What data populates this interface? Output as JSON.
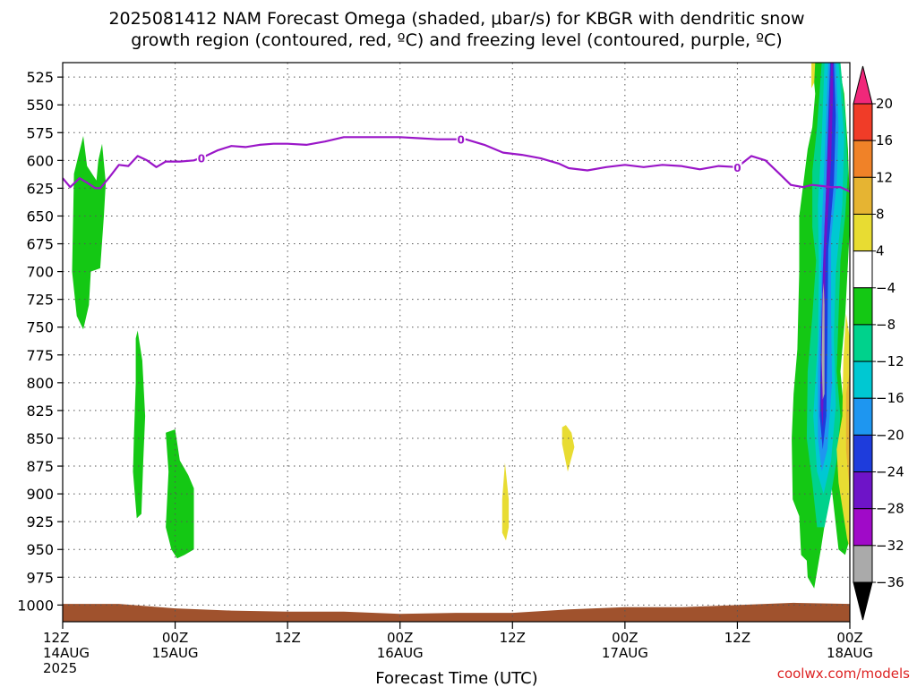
{
  "chart_data": {
    "type": "heatmap",
    "title": "2025081412 NAM Forecast Omega (shaded, μbar/s) for KBGR with dendritic snow growth region (contoured, red, ºC) and freezing level (contoured, purple, ºC)",
    "title_lines": [
      "2025081412 NAM Forecast Omega (shaded, μbar/s) for KBGR with dendritic snow",
      "growth region (contoured, red, ºC) and freezing level (contoured, purple, ºC)"
    ],
    "xlabel": "Forecast Time (UTC)",
    "credit": "coolwx.com/models",
    "y_axis": {
      "unit": "hPa",
      "reversed": true,
      "range": [
        1015,
        512
      ],
      "ticks": [
        525,
        550,
        575,
        600,
        625,
        650,
        675,
        700,
        725,
        750,
        775,
        800,
        825,
        850,
        875,
        900,
        925,
        950,
        975,
        1000
      ]
    },
    "x_axis": {
      "unit": "forecast hour",
      "range": [
        0,
        84
      ],
      "ticks": [
        {
          "hour": 0,
          "lines": [
            "12Z",
            "14AUG",
            "2025"
          ]
        },
        {
          "hour": 12,
          "lines": [
            "00Z",
            "15AUG"
          ]
        },
        {
          "hour": 24,
          "lines": [
            "12Z"
          ]
        },
        {
          "hour": 36,
          "lines": [
            "00Z",
            "16AUG"
          ]
        },
        {
          "hour": 48,
          "lines": [
            "12Z"
          ]
        },
        {
          "hour": 60,
          "lines": [
            "00Z",
            "17AUG"
          ]
        },
        {
          "hour": 72,
          "lines": [
            "12Z"
          ]
        },
        {
          "hour": 84,
          "lines": [
            "00Z",
            "18AUG"
          ]
        }
      ]
    },
    "grid": true,
    "colorbar": {
      "labels": [
        20,
        16,
        12,
        8,
        4,
        -4,
        -8,
        -12,
        -16,
        -20,
        -24,
        -28,
        -32,
        -36
      ],
      "colors": [
        "#f0287a",
        "#f03c28",
        "#f08228",
        "#e6b432",
        "#e8dc32",
        "#ffffff",
        "#14c814",
        "#00d28c",
        "#00c8d2",
        "#1e96f0",
        "#1e3cdc",
        "#6e14c8",
        "#a00ac8",
        "#aaaaaa",
        "#000000"
      ],
      "placement": "right"
    },
    "freezing_level": {
      "color": "#9a16c8",
      "label": "0",
      "points": [
        [
          0,
          616
        ],
        [
          0.8,
          624
        ],
        [
          1.8,
          616
        ],
        [
          2.6,
          620
        ],
        [
          3.5,
          625
        ],
        [
          4,
          625
        ],
        [
          5,
          615
        ],
        [
          6,
          604
        ],
        [
          7,
          605
        ],
        [
          8,
          596
        ],
        [
          9,
          600
        ],
        [
          10,
          606
        ],
        [
          11,
          601
        ],
        [
          12.5,
          601
        ],
        [
          14,
          600
        ],
        [
          15,
          597
        ],
        [
          16.5,
          591
        ],
        [
          18,
          587
        ],
        [
          19.5,
          588
        ],
        [
          21,
          586
        ],
        [
          22.5,
          585
        ],
        [
          24,
          585
        ],
        [
          26,
          586
        ],
        [
          28,
          583
        ],
        [
          30,
          579
        ],
        [
          33,
          579
        ],
        [
          36,
          579
        ],
        [
          38,
          580
        ],
        [
          40,
          581
        ],
        [
          43,
          581
        ],
        [
          45,
          586
        ],
        [
          47,
          593
        ],
        [
          49,
          595
        ],
        [
          51,
          598
        ],
        [
          53,
          603
        ],
        [
          54,
          607
        ],
        [
          56,
          609
        ],
        [
          58,
          606
        ],
        [
          60,
          604
        ],
        [
          62,
          606
        ],
        [
          64,
          604
        ],
        [
          66,
          605
        ],
        [
          68,
          608
        ],
        [
          70,
          605
        ],
        [
          72,
          606
        ],
        [
          73.5,
          596
        ],
        [
          75,
          600
        ],
        [
          76.5,
          612
        ],
        [
          77.7,
          622
        ],
        [
          79,
          624
        ],
        [
          80,
          622
        ],
        [
          81,
          623
        ],
        [
          82,
          624
        ],
        [
          83,
          624
        ],
        [
          84,
          628
        ]
      ],
      "label_hours": [
        14.8,
        42.5,
        72.0
      ]
    },
    "omega_regions": [
      {
        "level": -4,
        "color": "#14c814",
        "points": [
          [
            1.2,
            612
          ],
          [
            2.2,
            578
          ],
          [
            2.6,
            605
          ],
          [
            3.6,
            618
          ],
          [
            3.8,
            600
          ],
          [
            4.2,
            585
          ],
          [
            4.6,
            620
          ],
          [
            4.4,
            650
          ],
          [
            4.0,
            697
          ],
          [
            3.0,
            700
          ],
          [
            2.8,
            730
          ],
          [
            2.2,
            752
          ],
          [
            1.5,
            740
          ],
          [
            1.0,
            700
          ]
        ]
      },
      {
        "level": -4,
        "color": "#14c814",
        "points": [
          [
            8.0,
            753
          ],
          [
            8.5,
            780
          ],
          [
            8.8,
            830
          ],
          [
            8.6,
            870
          ],
          [
            8.4,
            918
          ],
          [
            7.9,
            922
          ],
          [
            7.5,
            880
          ],
          [
            7.6,
            850
          ],
          [
            7.8,
            800
          ],
          [
            7.8,
            760
          ]
        ]
      },
      {
        "level": -4,
        "color": "#14c814",
        "points": [
          [
            11.0,
            845
          ],
          [
            12.0,
            842
          ],
          [
            12.5,
            870
          ],
          [
            13.4,
            883
          ],
          [
            14.0,
            895
          ],
          [
            14.0,
            950
          ],
          [
            13.0,
            955
          ],
          [
            12.2,
            958
          ],
          [
            11.6,
            950
          ],
          [
            11.0,
            930
          ],
          [
            11.3,
            880
          ]
        ]
      },
      {
        "level": 4,
        "color": "#e8dc32",
        "points": [
          [
            47.2,
            872
          ],
          [
            47.6,
            905
          ],
          [
            47.6,
            930
          ],
          [
            47.3,
            942
          ],
          [
            46.9,
            935
          ],
          [
            46.9,
            905
          ]
        ]
      },
      {
        "level": 4,
        "color": "#e8dc32",
        "points": [
          [
            53.7,
            838
          ],
          [
            54.3,
            845
          ],
          [
            54.6,
            858
          ],
          [
            53.9,
            880
          ],
          [
            53.3,
            855
          ],
          [
            53.3,
            840
          ]
        ]
      },
      {
        "level": -4,
        "color": "#14c814",
        "points": [
          [
            80.0,
            512
          ],
          [
            81.5,
            512
          ],
          [
            82.8,
            512
          ],
          [
            83.4,
            540
          ],
          [
            83.8,
            590
          ],
          [
            84,
            640
          ],
          [
            84,
            660
          ],
          [
            83.5,
            740
          ],
          [
            83.0,
            790
          ],
          [
            83.8,
            865
          ],
          [
            84,
            940
          ],
          [
            83.5,
            955
          ],
          [
            82.8,
            950
          ],
          [
            82.0,
            890
          ],
          [
            80.9,
            950
          ],
          [
            80.2,
            985
          ],
          [
            79.5,
            975
          ],
          [
            79.4,
            960
          ],
          [
            78.8,
            955
          ],
          [
            78.6,
            920
          ],
          [
            77.9,
            905
          ],
          [
            77.8,
            850
          ],
          [
            78.0,
            810
          ],
          [
            78.4,
            770
          ],
          [
            78.6,
            700
          ],
          [
            78.6,
            650
          ],
          [
            79.2,
            610
          ],
          [
            79.5,
            590
          ],
          [
            80.0,
            570
          ],
          [
            80.3,
            540
          ]
        ]
      },
      {
        "level": -8,
        "color": "#00d28c",
        "points": [
          [
            81.0,
            512
          ],
          [
            83.0,
            512
          ],
          [
            83.5,
            560
          ],
          [
            83.8,
            610
          ],
          [
            83.5,
            650
          ],
          [
            83.0,
            690
          ],
          [
            82.8,
            740
          ],
          [
            82.6,
            790
          ],
          [
            83.0,
            830
          ],
          [
            82.6,
            870
          ],
          [
            82.0,
            900
          ],
          [
            81.3,
            930
          ],
          [
            80.5,
            930
          ],
          [
            80.0,
            890
          ],
          [
            79.4,
            850
          ],
          [
            79.5,
            790
          ],
          [
            80.0,
            740
          ],
          [
            80.4,
            690
          ],
          [
            80.0,
            660
          ],
          [
            80.0,
            610
          ],
          [
            80.5,
            570
          ]
        ]
      },
      {
        "level": -12,
        "color": "#00c8d2",
        "points": [
          [
            81.3,
            512
          ],
          [
            82.8,
            512
          ],
          [
            83.4,
            580
          ],
          [
            83.2,
            640
          ],
          [
            82.5,
            700
          ],
          [
            82.3,
            760
          ],
          [
            82.5,
            820
          ],
          [
            82.0,
            870
          ],
          [
            81.2,
            900
          ],
          [
            80.5,
            880
          ],
          [
            80.1,
            830
          ],
          [
            80.6,
            760
          ],
          [
            80.7,
            700
          ],
          [
            80.6,
            640
          ],
          [
            81.0,
            580
          ]
        ]
      },
      {
        "level": -16,
        "color": "#1e96f0",
        "points": [
          [
            81.7,
            512
          ],
          [
            82.5,
            512
          ],
          [
            82.8,
            570
          ],
          [
            82.6,
            620
          ],
          [
            82.0,
            670
          ],
          [
            82.0,
            740
          ],
          [
            82.1,
            800
          ],
          [
            81.6,
            860
          ],
          [
            81.0,
            880
          ],
          [
            80.6,
            850
          ],
          [
            80.6,
            790
          ],
          [
            80.9,
            720
          ],
          [
            81.0,
            660
          ],
          [
            81.3,
            600
          ]
        ]
      },
      {
        "level": -20,
        "color": "#1e3cdc",
        "points": [
          [
            81.9,
            512
          ],
          [
            82.3,
            512
          ],
          [
            82.5,
            560
          ],
          [
            82.3,
            620
          ],
          [
            81.7,
            680
          ],
          [
            81.6,
            760
          ],
          [
            81.5,
            830
          ],
          [
            81.1,
            860
          ],
          [
            80.8,
            830
          ],
          [
            80.9,
            770
          ],
          [
            81.1,
            700
          ],
          [
            81.5,
            620
          ],
          [
            81.7,
            560
          ]
        ]
      },
      {
        "level": -24,
        "color": "#6e14c8",
        "points": [
          [
            82.0,
            512
          ],
          [
            82.2,
            512
          ],
          [
            82.2,
            540
          ],
          [
            82.0,
            600
          ],
          [
            81.4,
            690
          ],
          [
            81.3,
            780
          ],
          [
            81.1,
            840
          ],
          [
            80.9,
            820
          ],
          [
            81.0,
            740
          ],
          [
            81.3,
            660
          ],
          [
            81.8,
            560
          ]
        ]
      },
      {
        "level": -32,
        "color": "#aaaaaa",
        "points": [
          [
            81.2,
            710
          ],
          [
            81.3,
            730
          ],
          [
            81.3,
            810
          ],
          [
            81.1,
            815
          ],
          [
            81.0,
            780
          ],
          [
            81.1,
            720
          ]
        ]
      },
      {
        "level": 4,
        "color": "#e8dc32",
        "points": [
          [
            79.9,
            512
          ],
          [
            80.3,
            512
          ],
          [
            80.2,
            530
          ],
          [
            79.9,
            535
          ]
        ]
      },
      {
        "level": 4,
        "color": "#e8dc32",
        "points": [
          [
            83.6,
            738
          ],
          [
            84,
            760
          ],
          [
            84,
            950
          ],
          [
            83.7,
            940
          ],
          [
            82.8,
            890
          ],
          [
            82.6,
            860
          ],
          [
            83.2,
            830
          ],
          [
            83.3,
            780
          ]
        ]
      },
      {
        "level": 8,
        "color": "#e6b432",
        "points": [
          [
            84,
            790
          ],
          [
            84,
            900
          ],
          [
            83.6,
            860
          ],
          [
            83.6,
            810
          ]
        ]
      },
      {
        "level": 12,
        "color": "#f08228",
        "points": [
          [
            84,
            815
          ],
          [
            84,
            870
          ],
          [
            83.9,
            850
          ]
        ]
      }
    ],
    "terrain": {
      "color": "#a0522d",
      "base": 1015,
      "points": [
        [
          0,
          999
        ],
        [
          6,
          999
        ],
        [
          12,
          1003
        ],
        [
          18,
          1005
        ],
        [
          24,
          1006
        ],
        [
          30,
          1006
        ],
        [
          36,
          1008
        ],
        [
          42,
          1007
        ],
        [
          48,
          1007
        ],
        [
          54,
          1004
        ],
        [
          60,
          1002
        ],
        [
          66,
          1002
        ],
        [
          72,
          1000
        ],
        [
          78,
          998
        ],
        [
          84,
          999
        ]
      ]
    }
  }
}
